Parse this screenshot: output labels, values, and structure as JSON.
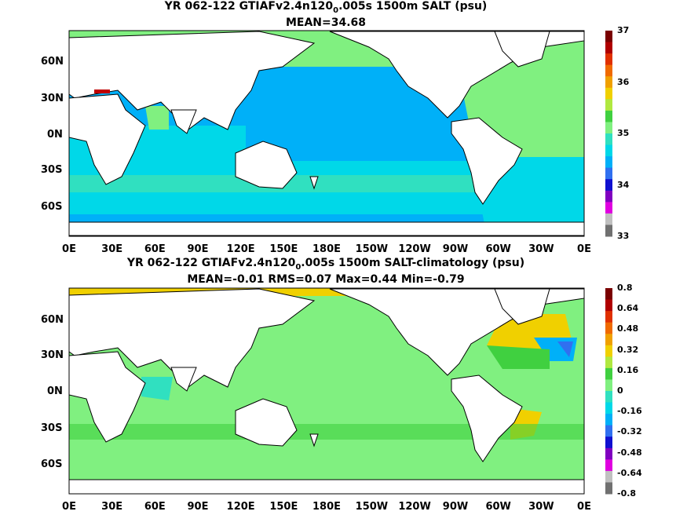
{
  "panels": [
    {
      "title_pre": "YR 062-122 GTIAFv2.4n120",
      "title_sub": "0",
      "title_post": ".005s 1500m SALT (psu)",
      "stats": "MEAN=34.68",
      "colorbar": {
        "labels": [
          "37",
          "36",
          "35",
          "34",
          "33"
        ],
        "colors": [
          "#7a0000",
          "#b00000",
          "#e03000",
          "#f06a00",
          "#f0a000",
          "#f0d000",
          "#b0e840",
          "#40d040",
          "#80f080",
          "#30e0c0",
          "#00d8e8",
          "#00b0f8",
          "#3070f0",
          "#1010d0",
          "#8000c0",
          "#e000e0",
          "#c0c0c0",
          "#707070"
        ]
      },
      "lat_labels": [
        "60N",
        "30N",
        "0N",
        "30S",
        "60S"
      ],
      "lon_labels": [
        "0E",
        "30E",
        "60E",
        "90E",
        "120E",
        "150E",
        "180E",
        "150W",
        "120W",
        "90W",
        "60W",
        "30W",
        "0E"
      ]
    },
    {
      "title_pre": "YR 062-122 GTIAFv2.4n120",
      "title_sub": "0",
      "title_post": ".005s 1500m SALT-climatology (psu)",
      "stats": "MEAN=-0.01   RMS=0.07   Max=0.44   Min=-0.79",
      "colorbar": {
        "labels": [
          "0.8",
          "0.64",
          "0.48",
          "0.32",
          "0.16",
          "0",
          "-0.16",
          "-0.32",
          "-0.48",
          "-0.64",
          "-0.8"
        ],
        "colors": [
          "#7a0000",
          "#b00000",
          "#e03000",
          "#f06a00",
          "#f0a000",
          "#f0d000",
          "#b0e840",
          "#40d040",
          "#80f080",
          "#30e0c0",
          "#00d8e8",
          "#00b0f8",
          "#3070f0",
          "#1010d0",
          "#8000c0",
          "#e000e0",
          "#c0c0c0",
          "#707070"
        ]
      },
      "lat_labels": [
        "60N",
        "30N",
        "0N",
        "30S",
        "60S"
      ],
      "lon_labels": [
        "0E",
        "30E",
        "60E",
        "90E",
        "120E",
        "150E",
        "180E",
        "150W",
        "120W",
        "90W",
        "60W",
        "30W",
        "0E"
      ]
    }
  ]
}
